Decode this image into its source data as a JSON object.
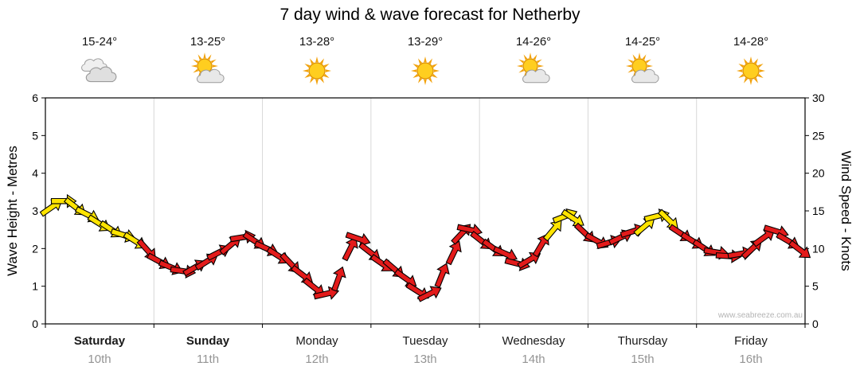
{
  "title": "7 day wind & wave forecast for Netherby",
  "watermark": "www.seabreeze.com.au",
  "days": [
    {
      "name": "Saturday",
      "date": "10th",
      "temp": "15-24°",
      "icon": "cloudy",
      "weekend": true
    },
    {
      "name": "Sunday",
      "date": "11th",
      "temp": "13-25°",
      "icon": "sun-cloud",
      "weekend": true
    },
    {
      "name": "Monday",
      "date": "12th",
      "temp": "13-28°",
      "icon": "sunny",
      "weekend": false
    },
    {
      "name": "Tuesday",
      "date": "13th",
      "temp": "13-29°",
      "icon": "sunny",
      "weekend": false
    },
    {
      "name": "Wednesday",
      "date": "14th",
      "temp": "14-26°",
      "icon": "sun-cloud",
      "weekend": false
    },
    {
      "name": "Thursday",
      "date": "15th",
      "temp": "14-25°",
      "icon": "sun-cloud",
      "weekend": false
    },
    {
      "name": "Friday",
      "date": "16th",
      "temp": "14-28°",
      "icon": "sunny",
      "weekend": false
    }
  ],
  "chart_data": {
    "type": "wind-arrow-line",
    "title": "7 day wind & wave forecast for Netherby",
    "x_unit": "days",
    "x_range": [
      0,
      7
    ],
    "left_axis": {
      "label": "Wave Height - Metres",
      "range": [
        0,
        6
      ],
      "ticks": [
        0,
        1,
        2,
        3,
        4,
        5,
        6
      ]
    },
    "right_axis": {
      "label": "Wind Speed - Knots",
      "range": [
        0,
        30
      ],
      "ticks": [
        0,
        5,
        10,
        15,
        20,
        25,
        30
      ]
    },
    "grid": {
      "day_separators": true,
      "horizontal": false
    },
    "palette": {
      "y": "#FFE400",
      "r": "#E31B1B",
      "outline": "#000000",
      "separator": "#d8d8d8"
    },
    "series": {
      "name": "Wind speed (knots), arrow color: yellow >= ~12.5kn, red below",
      "x": [
        0.059,
        0.169,
        0.279,
        0.389,
        0.499,
        0.609,
        0.719,
        0.829,
        0.939,
        1.049,
        1.159,
        1.269,
        1.379,
        1.49,
        1.6,
        1.71,
        1.82,
        1.93,
        2.04,
        2.15,
        2.26,
        2.37,
        2.48,
        2.59,
        2.7,
        2.81,
        2.884,
        2.994,
        3.104,
        3.214,
        3.324,
        3.434,
        3.544,
        3.654,
        3.764,
        3.837,
        3.911,
        4.021,
        4.131,
        4.241,
        4.351,
        4.461,
        4.571,
        4.681,
        4.791,
        4.865,
        4.975,
        5.085,
        5.195,
        5.305,
        5.415,
        5.525,
        5.635,
        5.745,
        5.855,
        5.965,
        6.075,
        6.185,
        6.295,
        6.405,
        6.515,
        6.625,
        6.736,
        6.846,
        6.956
      ],
      "knots": [
        15.5,
        16.3,
        15.5,
        14.5,
        13.3,
        12.5,
        11.8,
        11,
        9.8,
        8.3,
        7.5,
        7,
        7.5,
        8.3,
        9.5,
        10.5,
        11.5,
        11,
        10,
        9,
        8,
        6.5,
        4.8,
        4,
        6,
        10,
        11.3,
        9.5,
        8,
        7.3,
        6,
        4.3,
        4,
        6.5,
        9.5,
        12,
        12.5,
        11,
        10,
        9.3,
        8,
        8.5,
        10.5,
        12.5,
        14.3,
        14,
        12,
        11,
        10.8,
        11.5,
        12.3,
        13,
        14.3,
        13.8,
        12,
        11,
        10,
        9.5,
        9,
        9.3,
        10,
        11.5,
        12.3,
        11,
        9.8
      ],
      "colors": [
        "y",
        "y",
        "y",
        "y",
        "y",
        "y",
        "y",
        "y",
        "r",
        "r",
        "r",
        "r",
        "r",
        "r",
        "r",
        "r",
        "r",
        "r",
        "r",
        "r",
        "r",
        "r",
        "r",
        "r",
        "r",
        "r",
        "r",
        "r",
        "r",
        "r",
        "r",
        "r",
        "r",
        "r",
        "r",
        "r",
        "r",
        "r",
        "r",
        "r",
        "r",
        "r",
        "r",
        "y",
        "y",
        "y",
        "r",
        "r",
        "r",
        "r",
        "r",
        "y",
        "y",
        "y",
        "r",
        "r",
        "r",
        "r",
        "r",
        "r",
        "r",
        "r",
        "r",
        "r",
        "r"
      ]
    }
  }
}
